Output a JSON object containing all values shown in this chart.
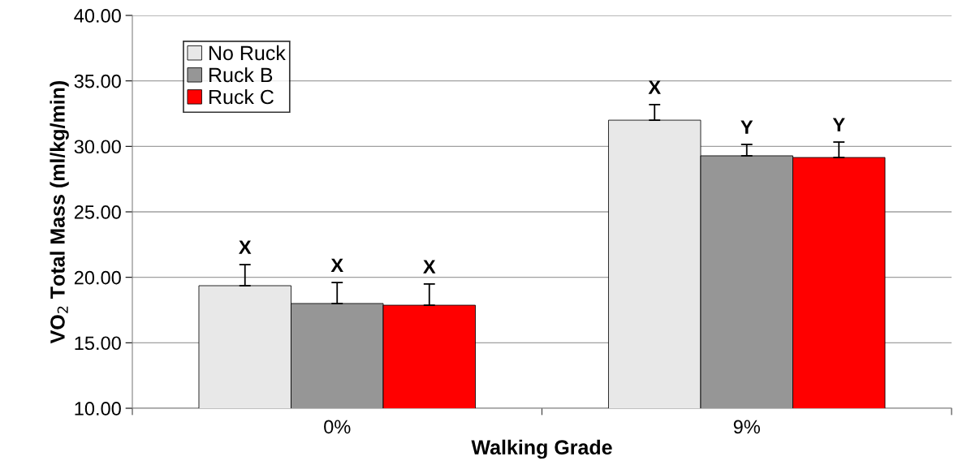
{
  "chart_data": {
    "type": "bar",
    "xlabel": "Walking Grade",
    "ylabel": "VO$_{2}$ Total Mass (ml/kg/min)",
    "categories": [
      "0%",
      "9%"
    ],
    "series": [
      {
        "name": "No Ruck",
        "color": "#e8e8e8",
        "values": [
          19.36,
          32.0
        ],
        "errors": [
          [
            19.36,
            20.97
          ],
          [
            32.0,
            33.19
          ]
        ]
      },
      {
        "name": "Ruck B",
        "color": "#969696",
        "values": [
          18.0,
          29.28
        ],
        "errors": [
          [
            18.0,
            19.6
          ],
          [
            29.28,
            30.15
          ]
        ]
      },
      {
        "name": "Ruck C",
        "color": "#ff0000",
        "values": [
          17.87,
          29.15
        ],
        "errors": [
          [
            17.87,
            19.49
          ],
          [
            29.15,
            30.33
          ]
        ]
      }
    ],
    "annotations": [
      "X",
      "X",
      "X",
      "X",
      "Y",
      "Y"
    ],
    "ylim": [
      10,
      40
    ],
    "yticks": [
      {
        "value": 10,
        "label": "10.00"
      },
      {
        "value": 15,
        "label": "15.00"
      },
      {
        "value": 20,
        "label": "20.00"
      },
      {
        "value": 25,
        "label": "25.00"
      },
      {
        "value": 30,
        "label": "30.00"
      },
      {
        "value": 35,
        "label": "35.00"
      },
      {
        "value": 40,
        "label": "40.00"
      }
    ],
    "grid": "y",
    "legend": "top left"
  }
}
